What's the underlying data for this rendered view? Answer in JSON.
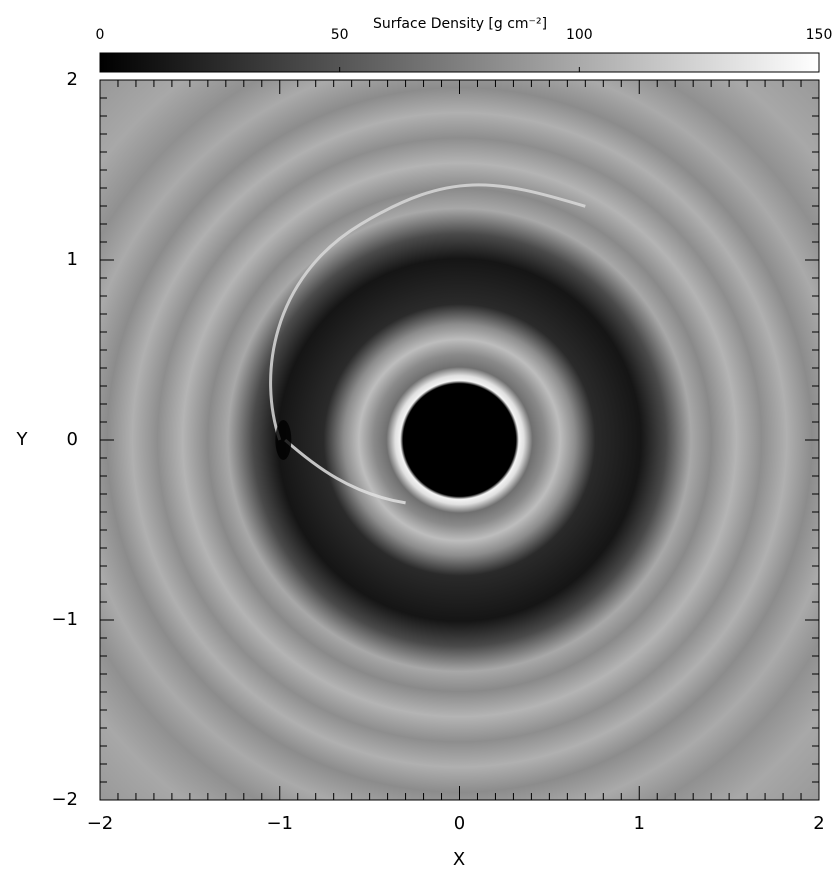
{
  "chart_data": {
    "type": "heatmap",
    "colorbar": {
      "label": "Surface Density [g cm⁻²]",
      "lim": [
        0,
        150
      ],
      "ticks": [
        0,
        50,
        100,
        150
      ],
      "colormap": "gray"
    },
    "xlabel": "X",
    "ylabel": "Y",
    "xlim": [
      -2,
      2
    ],
    "ylim": [
      -2,
      2
    ],
    "xticks": [
      {
        "value": -2,
        "label": "−2"
      },
      {
        "value": -1,
        "label": "−1"
      },
      0,
      1,
      2
    ],
    "yticks": [
      {
        "value": -2,
        "label": "−2"
      },
      {
        "value": -1,
        "label": "−1"
      },
      0,
      1,
      2
    ]
  }
}
